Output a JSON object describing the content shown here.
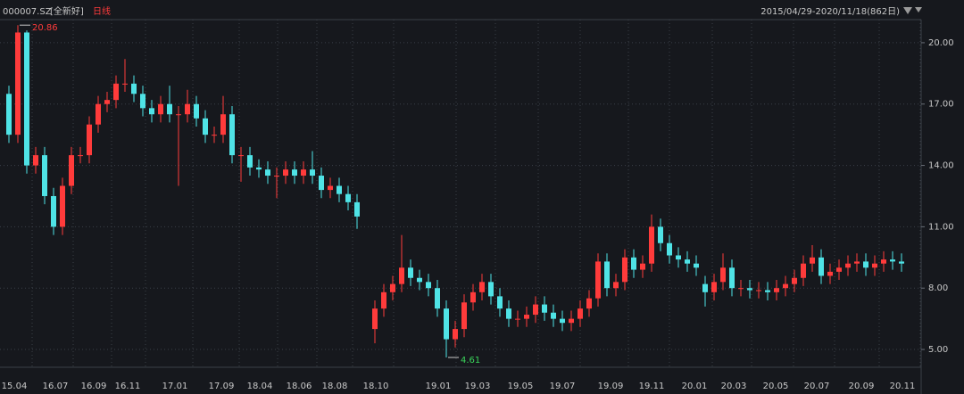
{
  "chart_data": {
    "type": "candlestick",
    "symbol": "000007.SZ",
    "name": "[全新好]",
    "period": "日线",
    "range_label": "2015/04/29-2020/11/18(862日)",
    "up_color": "#ff3b3b",
    "down_color": "#4fe3e6",
    "grid": true,
    "xlim": [
      0,
      101
    ],
    "ylim": [
      4.13,
      21.13
    ],
    "yticks": [
      {
        "value": 5,
        "label": "5.00"
      },
      {
        "value": 8,
        "label": "8.00"
      },
      {
        "value": 11,
        "label": "11.00"
      },
      {
        "value": 14,
        "label": "14.00"
      },
      {
        "value": 17,
        "label": "17.00"
      },
      {
        "value": 20,
        "label": "20.00"
      }
    ],
    "xticks": [
      {
        "value": 1.1,
        "label": "15.04"
      },
      {
        "value": 5.7,
        "label": "16.07"
      },
      {
        "value": 10,
        "label": "16.09"
      },
      {
        "value": 13.8,
        "label": "16.11"
      },
      {
        "value": 19.1,
        "label": "17.01"
      },
      {
        "value": 24.3,
        "label": "17.09"
      },
      {
        "value": 28.6,
        "label": "18.04"
      },
      {
        "value": 33,
        "label": "18.06"
      },
      {
        "value": 37,
        "label": "18.08"
      },
      {
        "value": 41.6,
        "label": "18.10"
      },
      {
        "value": 48.6,
        "label": "19.01"
      },
      {
        "value": 53,
        "label": "19.03"
      },
      {
        "value": 57.8,
        "label": "19.05"
      },
      {
        "value": 62.5,
        "label": "19.07"
      },
      {
        "value": 67.9,
        "label": "19.09"
      },
      {
        "value": 72.5,
        "label": "19.11"
      },
      {
        "value": 77.3,
        "label": "20.01"
      },
      {
        "value": 81.7,
        "label": "20.03"
      },
      {
        "value": 86.4,
        "label": "20.05"
      },
      {
        "value": 91,
        "label": "20.07"
      },
      {
        "value": 96,
        "label": "20.09"
      },
      {
        "value": 100.6,
        "label": "20.11"
      }
    ],
    "open": [
      17.5,
      15.5,
      20.5,
      14,
      14.5,
      12.5,
      11,
      13,
      14.5,
      14.5,
      16,
      17,
      17.2,
      18,
      18,
      17.5,
      16.8,
      16.5,
      17,
      16.5,
      16.5,
      17,
      16.3,
      15.5,
      15.5,
      16.5,
      14.5,
      14.5,
      13.9,
      13.8,
      13.5,
      13.5,
      13.8,
      13.5,
      13.8,
      13.5,
      12.8,
      13,
      12.6,
      12.2,
      null,
      6,
      7,
      7.8,
      8.2,
      9,
      8.5,
      8.3,
      8,
      7,
      5.5,
      6,
      7.3,
      7.8,
      8.3,
      7.6,
      7,
      6.5,
      6.5,
      6.7,
      7.2,
      6.8,
      6.5,
      6.3,
      6.5,
      7,
      7.5,
      9.3,
      8,
      8.3,
      9.5,
      8.9,
      9.2,
      11,
      10.2,
      9.6,
      9.4,
      9.2,
      8.2,
      7.8,
      8.3,
      9,
      8,
      8,
      7.9,
      7.9,
      7.8,
      8,
      8.2,
      8.5,
      9.2,
      9.5,
      8.6,
      8.8,
      9,
      9.2,
      9.3,
      9,
      9.2,
      9.4,
      9.3
    ],
    "high": [
      17.9,
      20.86,
      20.6,
      14.9,
      14.9,
      12.9,
      13.4,
      14.9,
      14.9,
      16.4,
      17.4,
      17.6,
      18.4,
      19.2,
      18.4,
      17.9,
      17.2,
      17.4,
      17.9,
      16.9,
      17.7,
      17.4,
      16.7,
      15.9,
      17.4,
      16.9,
      14.9,
      14.9,
      14.3,
      14.2,
      13.9,
      14.2,
      14.2,
      14.2,
      14.7,
      13.9,
      13.4,
      13.4,
      13,
      12.6,
      null,
      7.4,
      8.2,
      8.6,
      10.6,
      9.4,
      8.9,
      8.7,
      8.4,
      7.4,
      6.4,
      7.7,
      8.2,
      8.7,
      8.7,
      8,
      7.4,
      6.9,
      7.1,
      7.6,
      7.6,
      7.2,
      6.9,
      6.9,
      7.4,
      7.9,
      9.7,
      9.7,
      8.7,
      9.9,
      9.9,
      9.6,
      11.6,
      11.4,
      10.6,
      10,
      9.8,
      9.6,
      8.6,
      8.7,
      9.7,
      9.4,
      8.4,
      8.4,
      8.3,
      8.3,
      8.4,
      8.6,
      8.9,
      9.6,
      10.1,
      9.9,
      9.2,
      9.4,
      9.6,
      9.7,
      9.7,
      9.6,
      9.8,
      9.8,
      9.7
    ],
    "low": [
      15.1,
      15.1,
      13.6,
      13.6,
      12.1,
      10.6,
      10.6,
      12.6,
      14.1,
      14.1,
      15.6,
      16.6,
      16.8,
      17.6,
      17.1,
      16.4,
      16.1,
      16.1,
      16.1,
      13,
      16.1,
      15.9,
      15.1,
      15.1,
      15.1,
      14.1,
      13.2,
      13.5,
      13.4,
      13.1,
      12.4,
      13.1,
      13.1,
      13.1,
      13.1,
      12.4,
      12.4,
      12.2,
      11.8,
      10.9,
      null,
      5.3,
      6.6,
      7.4,
      7.8,
      8.1,
      7.9,
      7.6,
      6.6,
      4.61,
      5.1,
      5.6,
      6.9,
      7.4,
      7.2,
      6.6,
      6.1,
      6.1,
      6.1,
      6.3,
      6.4,
      6.1,
      5.9,
      5.9,
      6.1,
      6.6,
      7.1,
      7.6,
      7.6,
      7.9,
      8.5,
      8.5,
      8.8,
      9.8,
      9.2,
      9,
      8.8,
      8.6,
      7.1,
      7.4,
      7.9,
      7.6,
      7.6,
      7.5,
      7.5,
      7.4,
      7.4,
      7.6,
      7.8,
      8.1,
      8.8,
      8.2,
      8.2,
      8.4,
      8.6,
      8.8,
      8.6,
      8.6,
      8.8,
      8.9,
      8.8
    ],
    "close": [
      15.5,
      20.5,
      14,
      14.5,
      12.5,
      11,
      13,
      14.5,
      14.5,
      16,
      17,
      17.2,
      18,
      18,
      17.5,
      16.8,
      16.5,
      17,
      16.5,
      16.5,
      17,
      16.3,
      15.5,
      15.5,
      16.5,
      14.5,
      14.5,
      13.9,
      13.8,
      13.5,
      13.5,
      13.8,
      13.5,
      13.8,
      13.5,
      12.8,
      13,
      12.6,
      12.2,
      11.5,
      null,
      7,
      7.8,
      8.2,
      9,
      8.5,
      8.3,
      8,
      7,
      5.5,
      6,
      7.3,
      7.8,
      8.3,
      7.6,
      7,
      6.5,
      6.5,
      6.7,
      7.2,
      6.8,
      6.5,
      6.3,
      6.5,
      7,
      7.5,
      9.3,
      8,
      8.3,
      9.5,
      8.9,
      9.2,
      11,
      10.2,
      9.6,
      9.4,
      9.2,
      9,
      7.8,
      8.3,
      9,
      8,
      8,
      7.9,
      7.9,
      7.8,
      8,
      8.2,
      8.5,
      9.2,
      9.5,
      8.6,
      8.8,
      9,
      9.2,
      9.3,
      9,
      9.2,
      9.4,
      9.3,
      9.2
    ],
    "annotations": [
      {
        "text": "20.86",
        "index": 1,
        "value": 20.86,
        "color": "#ff3b3b"
      },
      {
        "text": "4.61",
        "index": 49,
        "value": 4.61,
        "color": "#3ad45a"
      }
    ]
  }
}
